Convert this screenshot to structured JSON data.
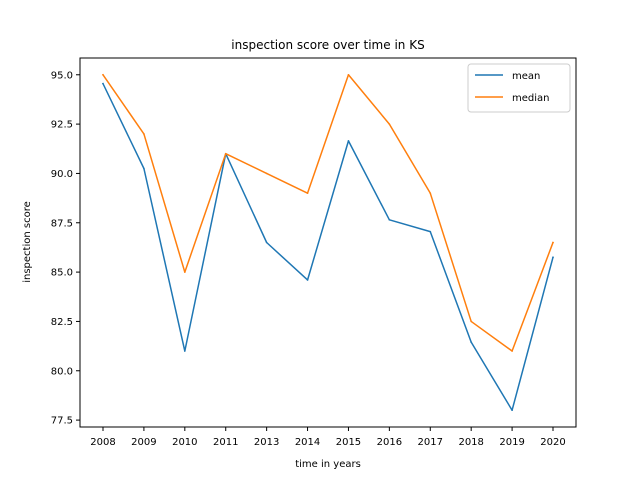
{
  "chart_data": {
    "type": "line",
    "title": "inspection score over time in KS",
    "xlabel": "time in years",
    "ylabel": "inspection score",
    "categories": [
      "2008",
      "2009",
      "2010",
      "2011",
      "2013",
      "2014",
      "2015",
      "2016",
      "2017",
      "2018",
      "2019",
      "2020"
    ],
    "series": [
      {
        "name": "mean",
        "color": "#1f77b4",
        "values": [
          94.55,
          90.25,
          81.0,
          91.0,
          86.5,
          84.6,
          91.65,
          87.65,
          87.05,
          81.45,
          78.0,
          85.75
        ]
      },
      {
        "name": "median",
        "color": "#ff7f0e",
        "values": [
          95.0,
          92.0,
          85.0,
          91.0,
          90.0,
          89.0,
          95.0,
          92.5,
          89.0,
          82.5,
          81.0,
          86.5
        ]
      }
    ],
    "ylim": [
      77.15,
      95.85
    ],
    "yticks": [
      "77.5",
      "80.0",
      "82.5",
      "85.0",
      "87.5",
      "90.0",
      "92.5",
      "95.0"
    ],
    "grid": false,
    "legend_position": "top-right"
  }
}
